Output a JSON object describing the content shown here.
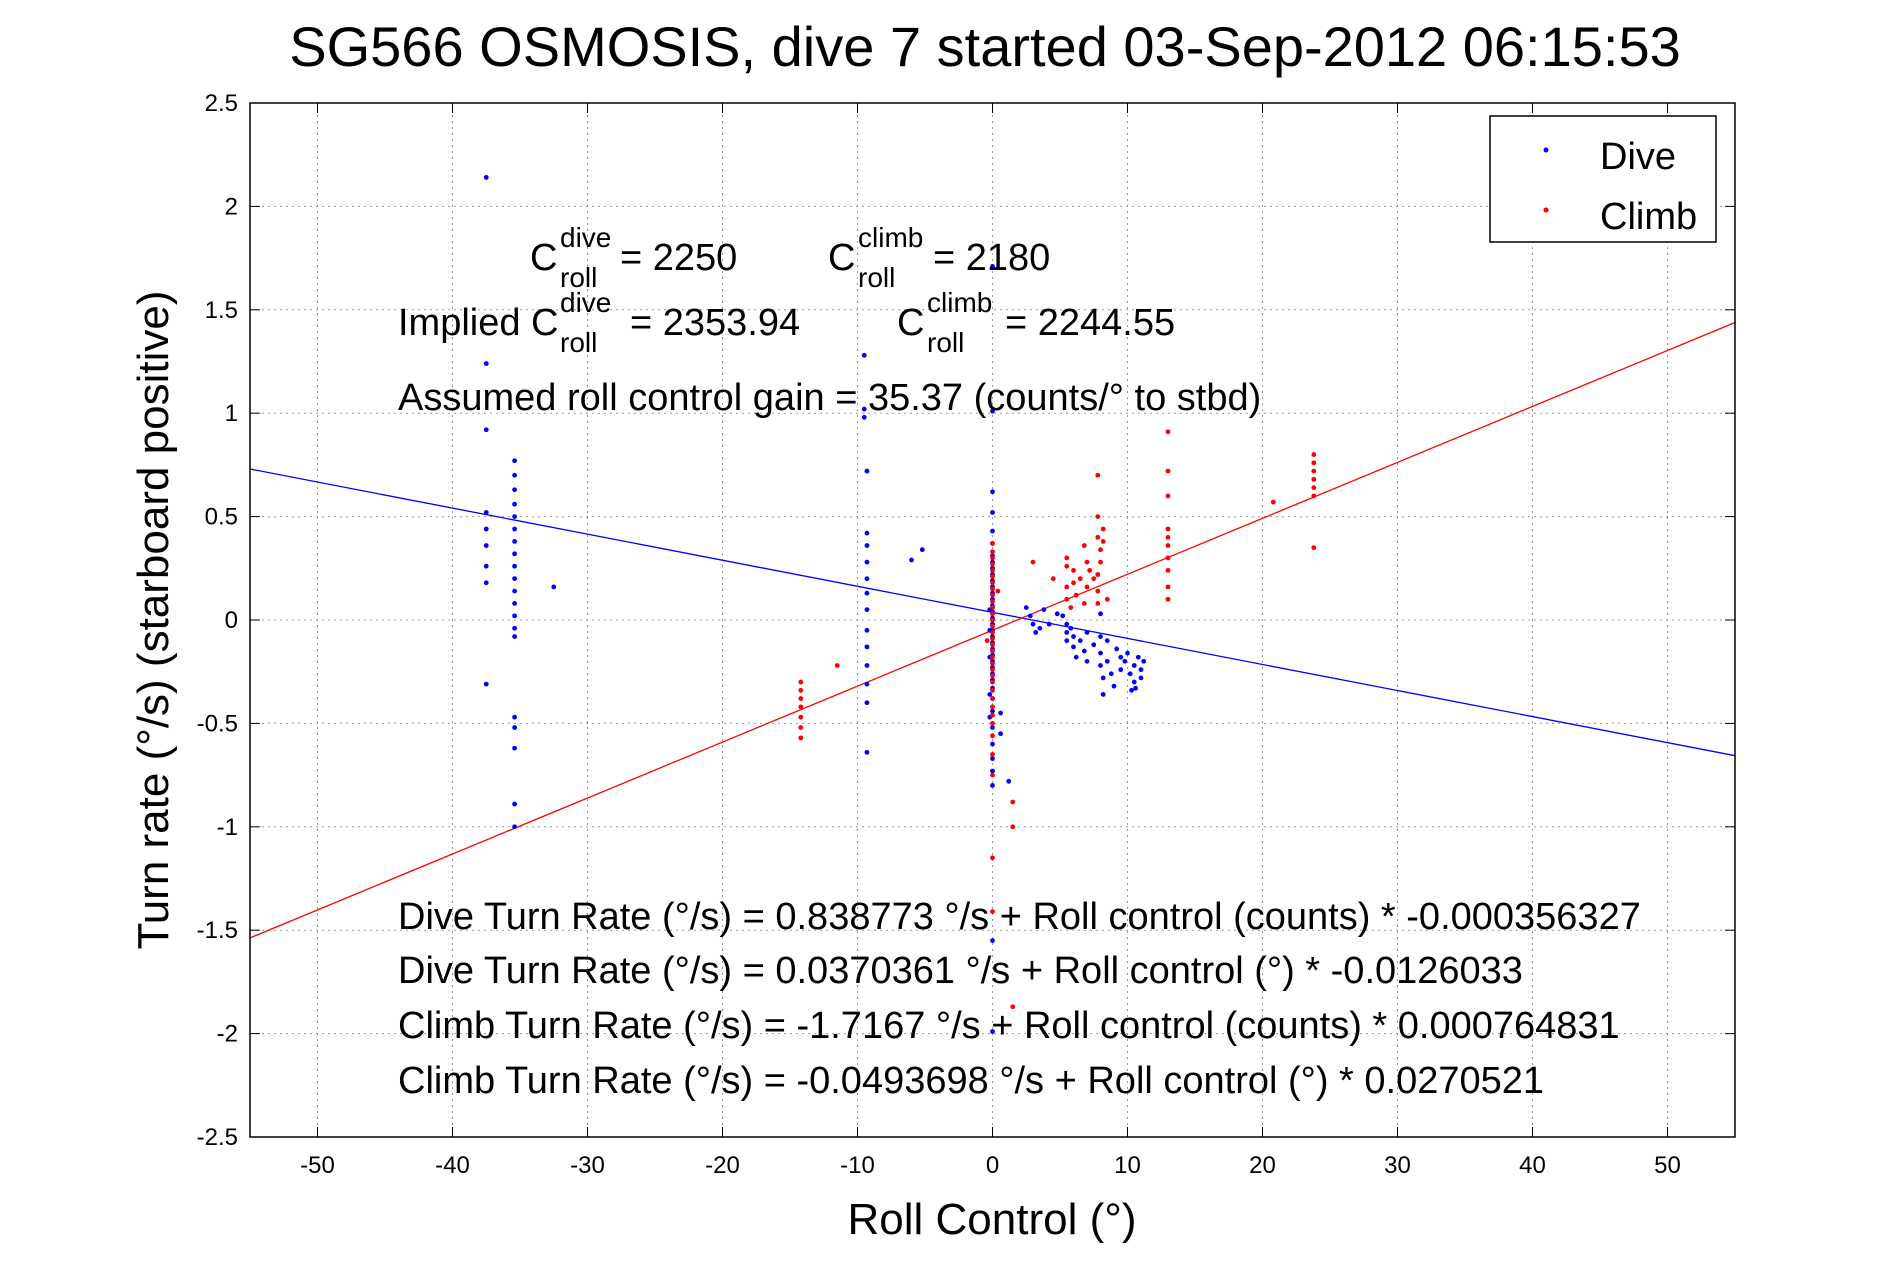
{
  "chart_data": {
    "type": "scatter",
    "title": "SG566 OSMOSIS, dive 7 started 03-Sep-2012 06:15:53",
    "xlabel": "Roll Control (°)",
    "ylabel": "Turn rate (°/s) (starboard positive)",
    "xlim": [
      -55,
      55
    ],
    "ylim": [
      -2.5,
      2.5
    ],
    "xticks": [
      -50,
      -40,
      -30,
      -20,
      -10,
      0,
      10,
      20,
      30,
      40,
      50
    ],
    "yticks": [
      -2.5,
      -2,
      -1.5,
      -1,
      -0.5,
      0,
      0.5,
      1,
      1.5,
      2,
      2.5
    ],
    "grid": "on (dotted)",
    "legend_position": "top-right",
    "colors": {
      "dive": "#0000ff",
      "climb": "#ff0000"
    },
    "series": [
      {
        "name": "Dive",
        "color": "#0000ff",
        "points": [
          [
            -37.5,
            2.14
          ],
          [
            -37.5,
            1.24
          ],
          [
            -37.5,
            0.92
          ],
          [
            -37.5,
            0.52
          ],
          [
            -37.5,
            0.44
          ],
          [
            -37.5,
            0.36
          ],
          [
            -37.5,
            0.26
          ],
          [
            -37.5,
            0.18
          ],
          [
            -37.5,
            -0.31
          ],
          [
            -35.4,
            0.77
          ],
          [
            -35.4,
            0.7
          ],
          [
            -35.4,
            0.63
          ],
          [
            -35.4,
            0.56
          ],
          [
            -35.4,
            0.5
          ],
          [
            -35.4,
            0.44
          ],
          [
            -35.4,
            0.38
          ],
          [
            -35.4,
            0.32
          ],
          [
            -35.4,
            0.26
          ],
          [
            -35.4,
            0.2
          ],
          [
            -35.4,
            0.14
          ],
          [
            -35.4,
            0.08
          ],
          [
            -35.4,
            0.02
          ],
          [
            -35.4,
            -0.04
          ],
          [
            -35.4,
            -0.08
          ],
          [
            -35.4,
            -0.47
          ],
          [
            -35.4,
            -0.52
          ],
          [
            -35.4,
            -0.62
          ],
          [
            -35.4,
            -0.89
          ],
          [
            -35.4,
            -1.0
          ],
          [
            -32.5,
            0.16
          ],
          [
            -9.5,
            1.28
          ],
          [
            -9.5,
            1.02
          ],
          [
            -9.5,
            0.98
          ],
          [
            -9.3,
            0.72
          ],
          [
            -9.3,
            0.42
          ],
          [
            -9.3,
            0.36
          ],
          [
            -9.3,
            0.28
          ],
          [
            -9.3,
            0.2
          ],
          [
            -9.3,
            0.13
          ],
          [
            -9.3,
            0.05
          ],
          [
            -9.3,
            -0.05
          ],
          [
            -9.3,
            -0.13
          ],
          [
            -9.3,
            -0.22
          ],
          [
            -9.3,
            -0.31
          ],
          [
            -9.3,
            -0.4
          ],
          [
            -9.3,
            -0.64
          ],
          [
            -6,
            0.29
          ],
          [
            -5.2,
            0.34
          ],
          [
            -0.2,
            0.05
          ],
          [
            -0.2,
            -0.05
          ],
          [
            -0.2,
            -0.18
          ],
          [
            -0.2,
            -0.36
          ],
          [
            -0.2,
            -0.47
          ],
          [
            0,
            1.71
          ],
          [
            0,
            1.01
          ],
          [
            0,
            0.62
          ],
          [
            0,
            0.52
          ],
          [
            0,
            0.43
          ],
          [
            0,
            0.37
          ],
          [
            0,
            0.31
          ],
          [
            0,
            0.28
          ],
          [
            0,
            0.25
          ],
          [
            0,
            0.22
          ],
          [
            0,
            0.19
          ],
          [
            0,
            0.16
          ],
          [
            0,
            0.13
          ],
          [
            0,
            0.1
          ],
          [
            0,
            0.07
          ],
          [
            0,
            0.04
          ],
          [
            0,
            0.01
          ],
          [
            0,
            -0.02
          ],
          [
            0,
            -0.05
          ],
          [
            0,
            -0.08
          ],
          [
            0,
            -0.11
          ],
          [
            0,
            -0.14
          ],
          [
            0,
            -0.17
          ],
          [
            0,
            -0.2
          ],
          [
            0,
            -0.23
          ],
          [
            0,
            -0.26
          ],
          [
            0,
            -0.29
          ],
          [
            0,
            -0.33
          ],
          [
            0,
            -0.38
          ],
          [
            0,
            -0.44
          ],
          [
            0,
            -0.52
          ],
          [
            0,
            -0.6
          ],
          [
            0,
            -0.67
          ],
          [
            0,
            -0.73
          ],
          [
            0,
            -0.8
          ],
          [
            0,
            -1.55
          ],
          [
            0,
            -1.99
          ],
          [
            0.6,
            -0.45
          ],
          [
            0.6,
            -0.55
          ],
          [
            1.2,
            -0.78
          ],
          [
            2.5,
            0.06
          ],
          [
            2.8,
            0.02
          ],
          [
            3.0,
            -0.02
          ],
          [
            3.2,
            -0.06
          ],
          [
            3.5,
            -0.04
          ],
          [
            3.8,
            0.05
          ],
          [
            4.2,
            -0.02
          ],
          [
            4.8,
            0.03
          ],
          [
            5.2,
            0.02
          ],
          [
            5.5,
            -0.02
          ],
          [
            5.5,
            -0.06
          ],
          [
            5.5,
            -0.1
          ],
          [
            5.8,
            -0.04
          ],
          [
            6.0,
            -0.08
          ],
          [
            6.0,
            -0.13
          ],
          [
            6.2,
            -0.18
          ],
          [
            6.5,
            -0.1
          ],
          [
            6.8,
            -0.15
          ],
          [
            7.0,
            -0.2
          ],
          [
            7.0,
            -0.06
          ],
          [
            7.5,
            -0.12
          ],
          [
            8.0,
            0.03
          ],
          [
            8.0,
            -0.08
          ],
          [
            8.0,
            -0.16
          ],
          [
            8.0,
            -0.22
          ],
          [
            8.2,
            -0.28
          ],
          [
            8.5,
            -0.1
          ],
          [
            8.5,
            -0.2
          ],
          [
            8.8,
            -0.26
          ],
          [
            9.0,
            -0.32
          ],
          [
            9.2,
            -0.14
          ],
          [
            9.5,
            -0.18
          ],
          [
            9.5,
            -0.24
          ],
          [
            9.8,
            -0.2
          ],
          [
            10.0,
            -0.16
          ],
          [
            10.2,
            -0.26
          ],
          [
            10.5,
            -0.22
          ],
          [
            10.5,
            -0.3
          ],
          [
            10.8,
            -0.18
          ],
          [
            11.0,
            -0.24
          ],
          [
            11.0,
            -0.28
          ],
          [
            11.2,
            -0.2
          ],
          [
            10.3,
            -0.34
          ],
          [
            10.6,
            -0.33
          ],
          [
            8.2,
            -0.36
          ]
        ]
      },
      {
        "name": "Climb",
        "color": "#ff0000",
        "points": [
          [
            -14.2,
            -0.3
          ],
          [
            -14.2,
            -0.34
          ],
          [
            -14.2,
            -0.38
          ],
          [
            -14.2,
            -0.42
          ],
          [
            -14.2,
            -0.47
          ],
          [
            -14.2,
            -0.52
          ],
          [
            -14.2,
            -0.57
          ],
          [
            -11.5,
            -0.22
          ],
          [
            0,
            0.37
          ],
          [
            0,
            0.33
          ],
          [
            0,
            0.3
          ],
          [
            0,
            0.27
          ],
          [
            0,
            0.24
          ],
          [
            0,
            0.21
          ],
          [
            0,
            0.18
          ],
          [
            0,
            0.15
          ],
          [
            0,
            0.12
          ],
          [
            0,
            0.09
          ],
          [
            0,
            0.06
          ],
          [
            0,
            0.03
          ],
          [
            0,
            0.0
          ],
          [
            0,
            -0.03
          ],
          [
            0,
            -0.06
          ],
          [
            0,
            -0.09
          ],
          [
            0,
            -0.12
          ],
          [
            0,
            -0.15
          ],
          [
            0,
            -0.18
          ],
          [
            0,
            -0.21
          ],
          [
            0,
            -0.24
          ],
          [
            0,
            -0.27
          ],
          [
            0,
            -0.3
          ],
          [
            0,
            -0.34
          ],
          [
            0,
            -0.38
          ],
          [
            0,
            -0.42
          ],
          [
            0,
            -0.46
          ],
          [
            0,
            -0.5
          ],
          [
            0,
            -0.56
          ],
          [
            0,
            -0.65
          ],
          [
            0,
            -0.75
          ],
          [
            0,
            -1.15
          ],
          [
            0,
            -1.41
          ],
          [
            0.4,
            0.14
          ],
          [
            -0.4,
            -0.1
          ],
          [
            1.5,
            -0.88
          ],
          [
            1.5,
            -1.0
          ],
          [
            1.5,
            -1.87
          ],
          [
            3.0,
            0.28
          ],
          [
            4.5,
            0.2
          ],
          [
            5.5,
            0.3
          ],
          [
            5.5,
            0.26
          ],
          [
            5.5,
            0.16
          ],
          [
            5.5,
            0.1
          ],
          [
            6.0,
            0.24
          ],
          [
            6.0,
            0.18
          ],
          [
            6.5,
            0.2
          ],
          [
            6.8,
            0.36
          ],
          [
            7.0,
            0.28
          ],
          [
            7.0,
            0.16
          ],
          [
            7.2,
            0.24
          ],
          [
            7.5,
            0.2
          ],
          [
            6.2,
            0.12
          ],
          [
            5.8,
            0.06
          ],
          [
            6.8,
            0.08
          ],
          [
            7.8,
            0.7
          ],
          [
            7.8,
            0.5
          ],
          [
            7.8,
            0.4
          ],
          [
            7.8,
            0.22
          ],
          [
            7.8,
            0.14
          ],
          [
            7.8,
            0.08
          ],
          [
            8.0,
            0.34
          ],
          [
            8.0,
            0.28
          ],
          [
            8.2,
            0.44
          ],
          [
            8.2,
            0.38
          ],
          [
            8.5,
            0.1
          ],
          [
            13.0,
            0.91
          ],
          [
            13.0,
            0.72
          ],
          [
            13.0,
            0.6
          ],
          [
            13.0,
            0.44
          ],
          [
            13.0,
            0.4
          ],
          [
            13.0,
            0.36
          ],
          [
            13.0,
            0.3
          ],
          [
            13.0,
            0.24
          ],
          [
            13.0,
            0.16
          ],
          [
            13.0,
            0.1
          ],
          [
            20.8,
            0.57
          ],
          [
            23.8,
            0.8
          ],
          [
            23.8,
            0.76
          ],
          [
            23.8,
            0.72
          ],
          [
            23.8,
            0.68
          ],
          [
            23.8,
            0.64
          ],
          [
            23.8,
            0.6
          ],
          [
            23.8,
            0.35
          ]
        ]
      }
    ],
    "fit_lines": [
      {
        "name": "Dive fit",
        "color": "#0000ff",
        "intercept": 0.0370361,
        "slope": -0.0126033
      },
      {
        "name": "Climb fit",
        "color": "#ff0000",
        "intercept": -0.0493698,
        "slope": 0.0270521
      }
    ],
    "annotations": {
      "c_dive": {
        "prefix": "C",
        "sup": "dive",
        "sub": "roll",
        "value": " = 2250"
      },
      "c_climb": {
        "prefix": "C",
        "sup": "climb",
        "sub": "roll",
        "value": " = 2180"
      },
      "implied_dive": {
        "prefix": "Implied C",
        "sup": "dive",
        "sub": "roll",
        "value": " = 2353.94"
      },
      "implied_climb": {
        "prefix": "C",
        "sup": "climb",
        "sub": "roll",
        "value": " = 2244.55"
      },
      "gain": "Assumed roll control gain = 35.37 (counts/° to stbd)",
      "equations": [
        "Dive Turn Rate (°/s) = 0.838773 °/s + Roll control (counts) * -0.000356327",
        "Dive Turn Rate (°/s) = 0.0370361 °/s + Roll control (°) * -0.0126033",
        "Climb Turn Rate (°/s) = -1.7167 °/s + Roll control (counts) * 0.000764831",
        "Climb Turn Rate (°/s) = -0.0493698 °/s + Roll control (°) * 0.0270521"
      ]
    }
  }
}
